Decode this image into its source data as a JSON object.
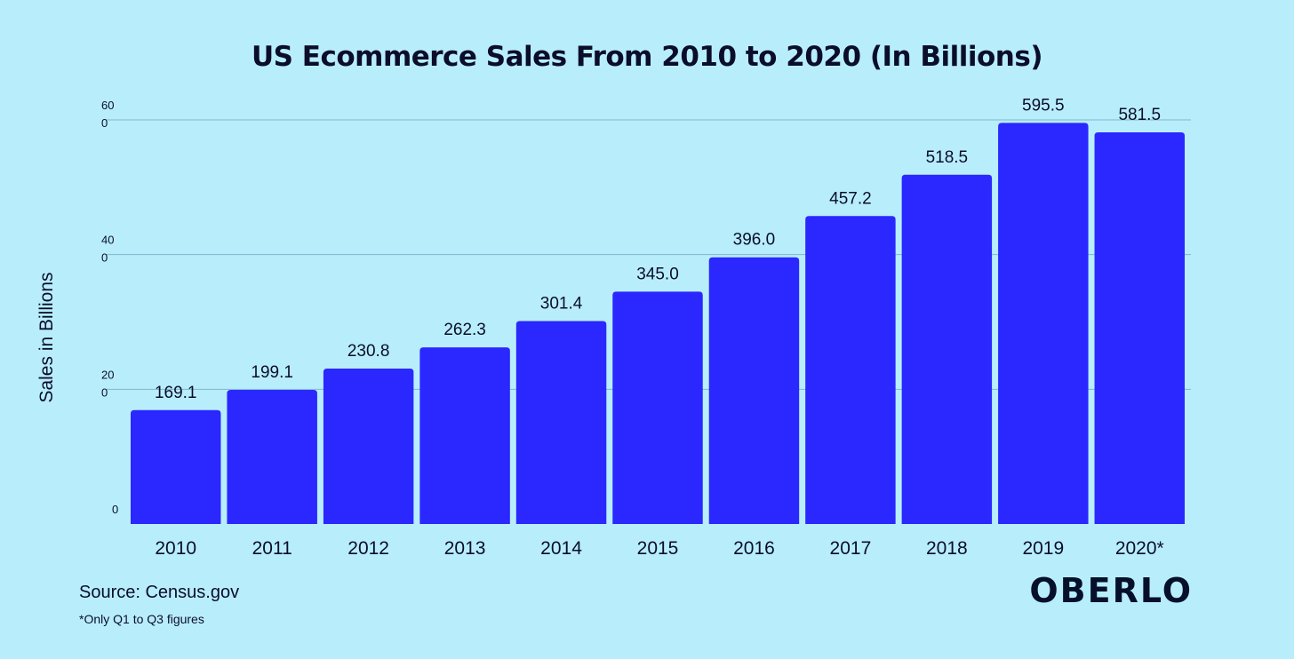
{
  "chart_data": {
    "type": "bar",
    "title": "US Ecommerce Sales From 2010 to 2020 (In Billions)",
    "xlabel": "",
    "ylabel": "Sales in Billions",
    "categories": [
      "2010",
      "2011",
      "2012",
      "2013",
      "2014",
      "2015",
      "2016",
      "2017",
      "2018",
      "2019",
      "2020*"
    ],
    "values": [
      169.1,
      199.1,
      230.8,
      262.3,
      301.4,
      345.0,
      396.0,
      457.2,
      518.5,
      595.5,
      581.5
    ],
    "value_labels": [
      "169.1",
      "199.1",
      "230.8",
      "262.3",
      "301.4",
      "345.0",
      "396.0",
      "457.2",
      "518.5",
      "595.5",
      "581.5"
    ],
    "ylim": [
      0,
      600
    ],
    "yticks": [
      {
        "value": 0,
        "line1": "0",
        "line2": ""
      },
      {
        "value": 200,
        "line1": "20",
        "line2": "0"
      },
      {
        "value": 400,
        "line1": "40",
        "line2": "0"
      },
      {
        "value": 600,
        "line1": "60",
        "line2": "0"
      }
    ],
    "grid": true,
    "bar_color": "#2a27ff",
    "grid_color": "#7fb6cc"
  },
  "source": "Source: Census.gov",
  "footnote": "*Only Q1 to Q3 figures",
  "brand": "OBERLO",
  "colors": {
    "background": "#b8eefc",
    "text": "#0b0d2a",
    "bar": "#2a27ff"
  }
}
